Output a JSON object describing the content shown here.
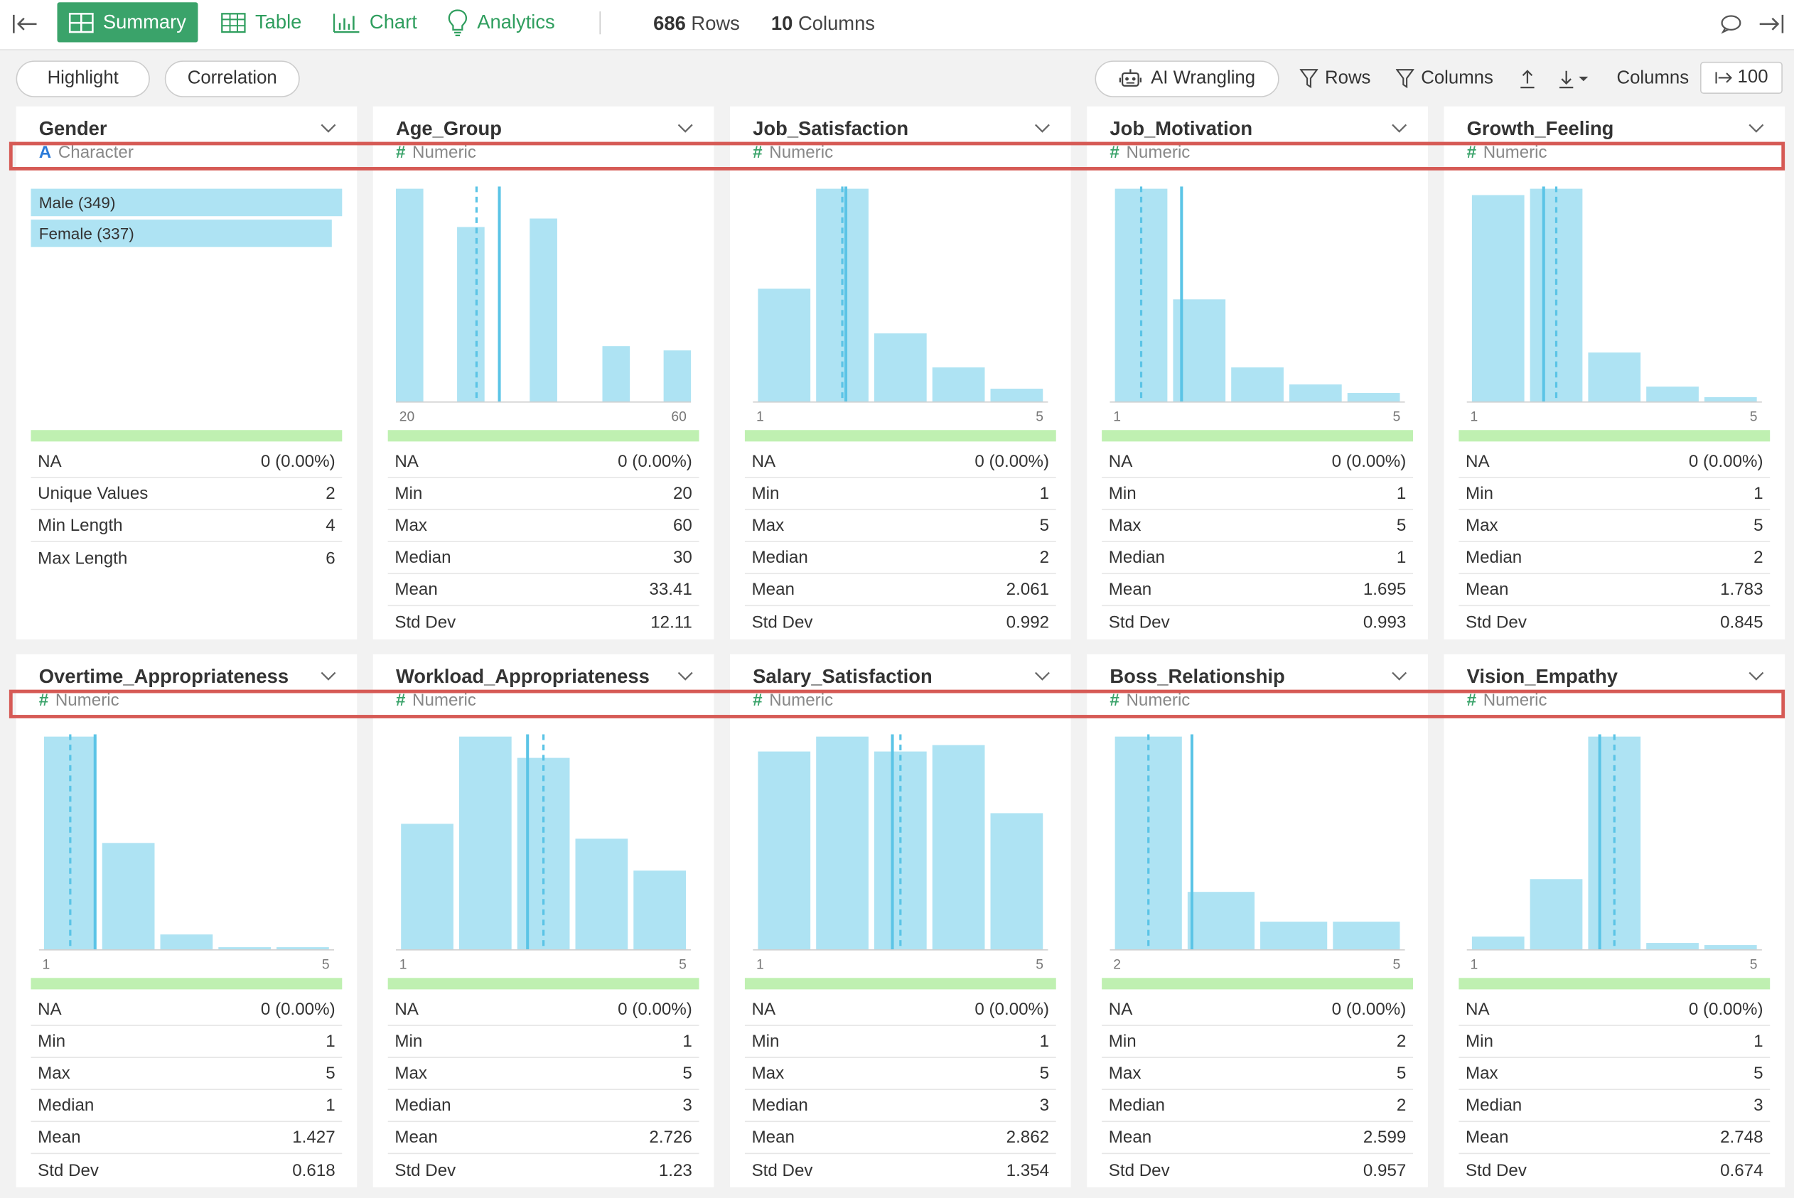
{
  "toolbar": {
    "tabs": [
      {
        "label": "Summary",
        "icon": "summary-grid-icon",
        "active": true
      },
      {
        "label": "Table",
        "icon": "table-icon",
        "active": false
      },
      {
        "label": "Chart",
        "icon": "bar-chart-icon",
        "active": false
      },
      {
        "label": "Analytics",
        "icon": "lightbulb-icon",
        "active": false
      }
    ],
    "rows_count": "686",
    "rows_label": "Rows",
    "cols_count": "10",
    "cols_label": "Columns"
  },
  "subtoolbar": {
    "highlight_label": "Highlight",
    "correlation_label": "Correlation",
    "ai_label": "AI Wrangling",
    "rows_filter_label": "Rows",
    "columns_filter_label": "Columns",
    "columns_label": "Columns",
    "columns_value": "100"
  },
  "colors": {
    "accent": "#3aa36a",
    "bar": "#aee3f3",
    "mean_line": "#5bc4e6",
    "highlight_box": "#d65a55",
    "na_bar": "#bff0b1"
  },
  "columns": [
    {
      "name": "Gender",
      "type": "Character",
      "type_symbol": "A",
      "categories": [
        {
          "label": "Male (349)",
          "count": 349
        },
        {
          "label": "Female (337)",
          "count": 337
        }
      ],
      "stats": [
        [
          "NA",
          "0 (0.00%)"
        ],
        [
          "Unique Values",
          "2"
        ],
        [
          "Min Length",
          "4"
        ],
        [
          "Max Length",
          "6"
        ]
      ]
    },
    {
      "name": "Age_Group",
      "type": "Numeric",
      "type_symbol": "#",
      "axis_min": "20",
      "axis_max": "60",
      "stats": [
        [
          "NA",
          "0 (0.00%)"
        ],
        [
          "Min",
          "20"
        ],
        [
          "Max",
          "60"
        ],
        [
          "Median",
          "30"
        ],
        [
          "Mean",
          "33.41"
        ],
        [
          "Std Dev",
          "12.11"
        ]
      ]
    },
    {
      "name": "Job_Satisfaction",
      "type": "Numeric",
      "type_symbol": "#",
      "axis_min": "1",
      "axis_max": "5",
      "stats": [
        [
          "NA",
          "0 (0.00%)"
        ],
        [
          "Min",
          "1"
        ],
        [
          "Max",
          "5"
        ],
        [
          "Median",
          "2"
        ],
        [
          "Mean",
          "2.061"
        ],
        [
          "Std Dev",
          "0.992"
        ]
      ]
    },
    {
      "name": "Job_Motivation",
      "type": "Numeric",
      "type_symbol": "#",
      "axis_min": "1",
      "axis_max": "5",
      "stats": [
        [
          "NA",
          "0 (0.00%)"
        ],
        [
          "Min",
          "1"
        ],
        [
          "Max",
          "5"
        ],
        [
          "Median",
          "1"
        ],
        [
          "Mean",
          "1.695"
        ],
        [
          "Std Dev",
          "0.993"
        ]
      ]
    },
    {
      "name": "Growth_Feeling",
      "type": "Numeric",
      "type_symbol": "#",
      "axis_min": "1",
      "axis_max": "5",
      "stats": [
        [
          "NA",
          "0 (0.00%)"
        ],
        [
          "Min",
          "1"
        ],
        [
          "Max",
          "5"
        ],
        [
          "Median",
          "2"
        ],
        [
          "Mean",
          "1.783"
        ],
        [
          "Std Dev",
          "0.845"
        ]
      ]
    },
    {
      "name": "Overtime_Appropriateness",
      "type": "Numeric",
      "type_symbol": "#",
      "axis_min": "1",
      "axis_max": "5",
      "stats": [
        [
          "NA",
          "0 (0.00%)"
        ],
        [
          "Min",
          "1"
        ],
        [
          "Max",
          "5"
        ],
        [
          "Median",
          "1"
        ],
        [
          "Mean",
          "1.427"
        ],
        [
          "Std Dev",
          "0.618"
        ]
      ]
    },
    {
      "name": "Workload_Appropriateness",
      "type": "Numeric",
      "type_symbol": "#",
      "axis_min": "1",
      "axis_max": "5",
      "stats": [
        [
          "NA",
          "0 (0.00%)"
        ],
        [
          "Min",
          "1"
        ],
        [
          "Max",
          "5"
        ],
        [
          "Median",
          "3"
        ],
        [
          "Mean",
          "2.726"
        ],
        [
          "Std Dev",
          "1.23"
        ]
      ]
    },
    {
      "name": "Salary_Satisfaction",
      "type": "Numeric",
      "type_symbol": "#",
      "axis_min": "1",
      "axis_max": "5",
      "stats": [
        [
          "NA",
          "0 (0.00%)"
        ],
        [
          "Min",
          "1"
        ],
        [
          "Max",
          "5"
        ],
        [
          "Median",
          "3"
        ],
        [
          "Mean",
          "2.862"
        ],
        [
          "Std Dev",
          "1.354"
        ]
      ]
    },
    {
      "name": "Boss_Relationship",
      "type": "Numeric",
      "type_symbol": "#",
      "axis_min": "2",
      "axis_max": "5",
      "stats": [
        [
          "NA",
          "0 (0.00%)"
        ],
        [
          "Min",
          "2"
        ],
        [
          "Max",
          "5"
        ],
        [
          "Median",
          "2"
        ],
        [
          "Mean",
          "2.599"
        ],
        [
          "Std Dev",
          "0.957"
        ]
      ]
    },
    {
      "name": "Vision_Empathy",
      "type": "Numeric",
      "type_symbol": "#",
      "axis_min": "1",
      "axis_max": "5",
      "stats": [
        [
          "NA",
          "0 (0.00%)"
        ],
        [
          "Min",
          "1"
        ],
        [
          "Max",
          "5"
        ],
        [
          "Median",
          "3"
        ],
        [
          "Mean",
          "2.748"
        ],
        [
          "Std Dev",
          "0.674"
        ]
      ]
    }
  ],
  "chart_data": [
    {
      "type": "bar",
      "column": "Gender",
      "categories": [
        "Male",
        "Female"
      ],
      "values": [
        349,
        337
      ],
      "xlim": [
        0,
        349
      ]
    },
    {
      "type": "bar",
      "column": "Age_Group",
      "x": [
        20,
        30,
        40,
        50,
        60
      ],
      "values": [
        1.0,
        0.82,
        0.86,
        0.26,
        0.24
      ],
      "xlim": [
        20,
        60
      ],
      "median": 30,
      "mean": 33.41
    },
    {
      "type": "bar",
      "column": "Job_Satisfaction",
      "x": [
        1,
        2,
        3,
        4,
        5
      ],
      "values": [
        0.53,
        1.0,
        0.32,
        0.16,
        0.06
      ],
      "xlim": [
        1,
        5
      ],
      "median": 2,
      "mean": 2.061
    },
    {
      "type": "bar",
      "column": "Job_Motivation",
      "x": [
        1,
        2,
        3,
        4,
        5
      ],
      "values": [
        1.0,
        0.48,
        0.16,
        0.08,
        0.04
      ],
      "xlim": [
        1,
        5
      ],
      "median": 1,
      "mean": 1.695
    },
    {
      "type": "bar",
      "column": "Growth_Feeling",
      "x": [
        1,
        2,
        3,
        4,
        5
      ],
      "values": [
        0.97,
        1.0,
        0.23,
        0.07,
        0.02
      ],
      "xlim": [
        1,
        5
      ],
      "median": 2,
      "mean": 1.783
    },
    {
      "type": "bar",
      "column": "Overtime_Appropriateness",
      "x": [
        1,
        2,
        3,
        4,
        5
      ],
      "values": [
        1.0,
        0.5,
        0.07,
        0.01,
        0.01
      ],
      "xlim": [
        1,
        5
      ],
      "median": 1,
      "mean": 1.427
    },
    {
      "type": "bar",
      "column": "Workload_Appropriateness",
      "x": [
        1,
        2,
        3,
        4,
        5
      ],
      "values": [
        0.59,
        1.0,
        0.9,
        0.52,
        0.37
      ],
      "xlim": [
        1,
        5
      ],
      "median": 3,
      "mean": 2.726
    },
    {
      "type": "bar",
      "column": "Salary_Satisfaction",
      "x": [
        1,
        2,
        3,
        4,
        5
      ],
      "values": [
        0.93,
        1.0,
        0.93,
        0.96,
        0.64
      ],
      "xlim": [
        1,
        5
      ],
      "median": 3,
      "mean": 2.862
    },
    {
      "type": "bar",
      "column": "Boss_Relationship",
      "x": [
        2,
        3,
        4,
        5
      ],
      "values": [
        1.0,
        0.27,
        0.13,
        0.13
      ],
      "xlim": [
        2,
        5
      ],
      "median": 2,
      "mean": 2.599
    },
    {
      "type": "bar",
      "column": "Vision_Empathy",
      "x": [
        1,
        2,
        3,
        4,
        5
      ],
      "values": [
        0.06,
        0.33,
        1.0,
        0.03,
        0.02
      ],
      "xlim": [
        1,
        5
      ],
      "median": 3,
      "mean": 2.748
    }
  ]
}
